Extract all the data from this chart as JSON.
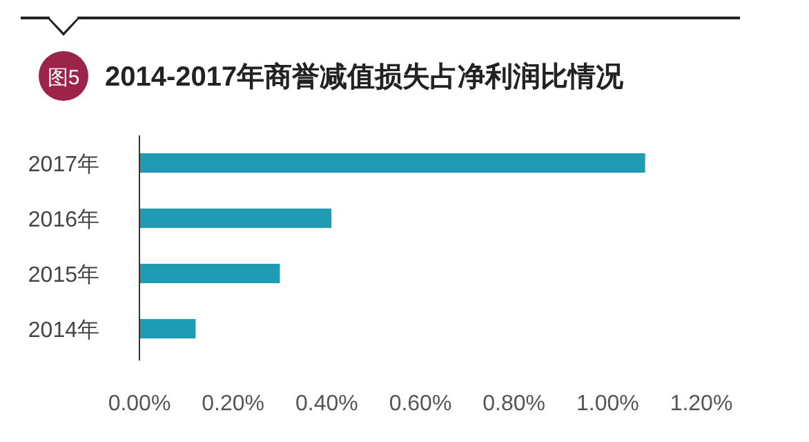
{
  "chart_data": {
    "type": "bar",
    "orientation": "horizontal",
    "title": "2014-2017年商誉减值损失占净利润比情况",
    "annotations": [
      "图5"
    ],
    "categories": [
      "2017年",
      "2016年",
      "2015年",
      "2014年"
    ],
    "values": [
      1.08,
      0.41,
      0.3,
      0.12
    ],
    "color": "#1e9cb4",
    "xlim": [
      0,
      1.2
    ],
    "xticks": [
      {
        "value": 0,
        "label": "0.00%"
      },
      {
        "value": 0.2,
        "label": "0.20%"
      },
      {
        "value": 0.4,
        "label": "0.40%"
      },
      {
        "value": 0.6,
        "label": "0.60%"
      },
      {
        "value": 0.8,
        "label": "0.80%"
      },
      {
        "value": 1.0,
        "label": "1.00%"
      },
      {
        "value": 1.2,
        "label": "1.20%"
      }
    ],
    "grid": false
  }
}
